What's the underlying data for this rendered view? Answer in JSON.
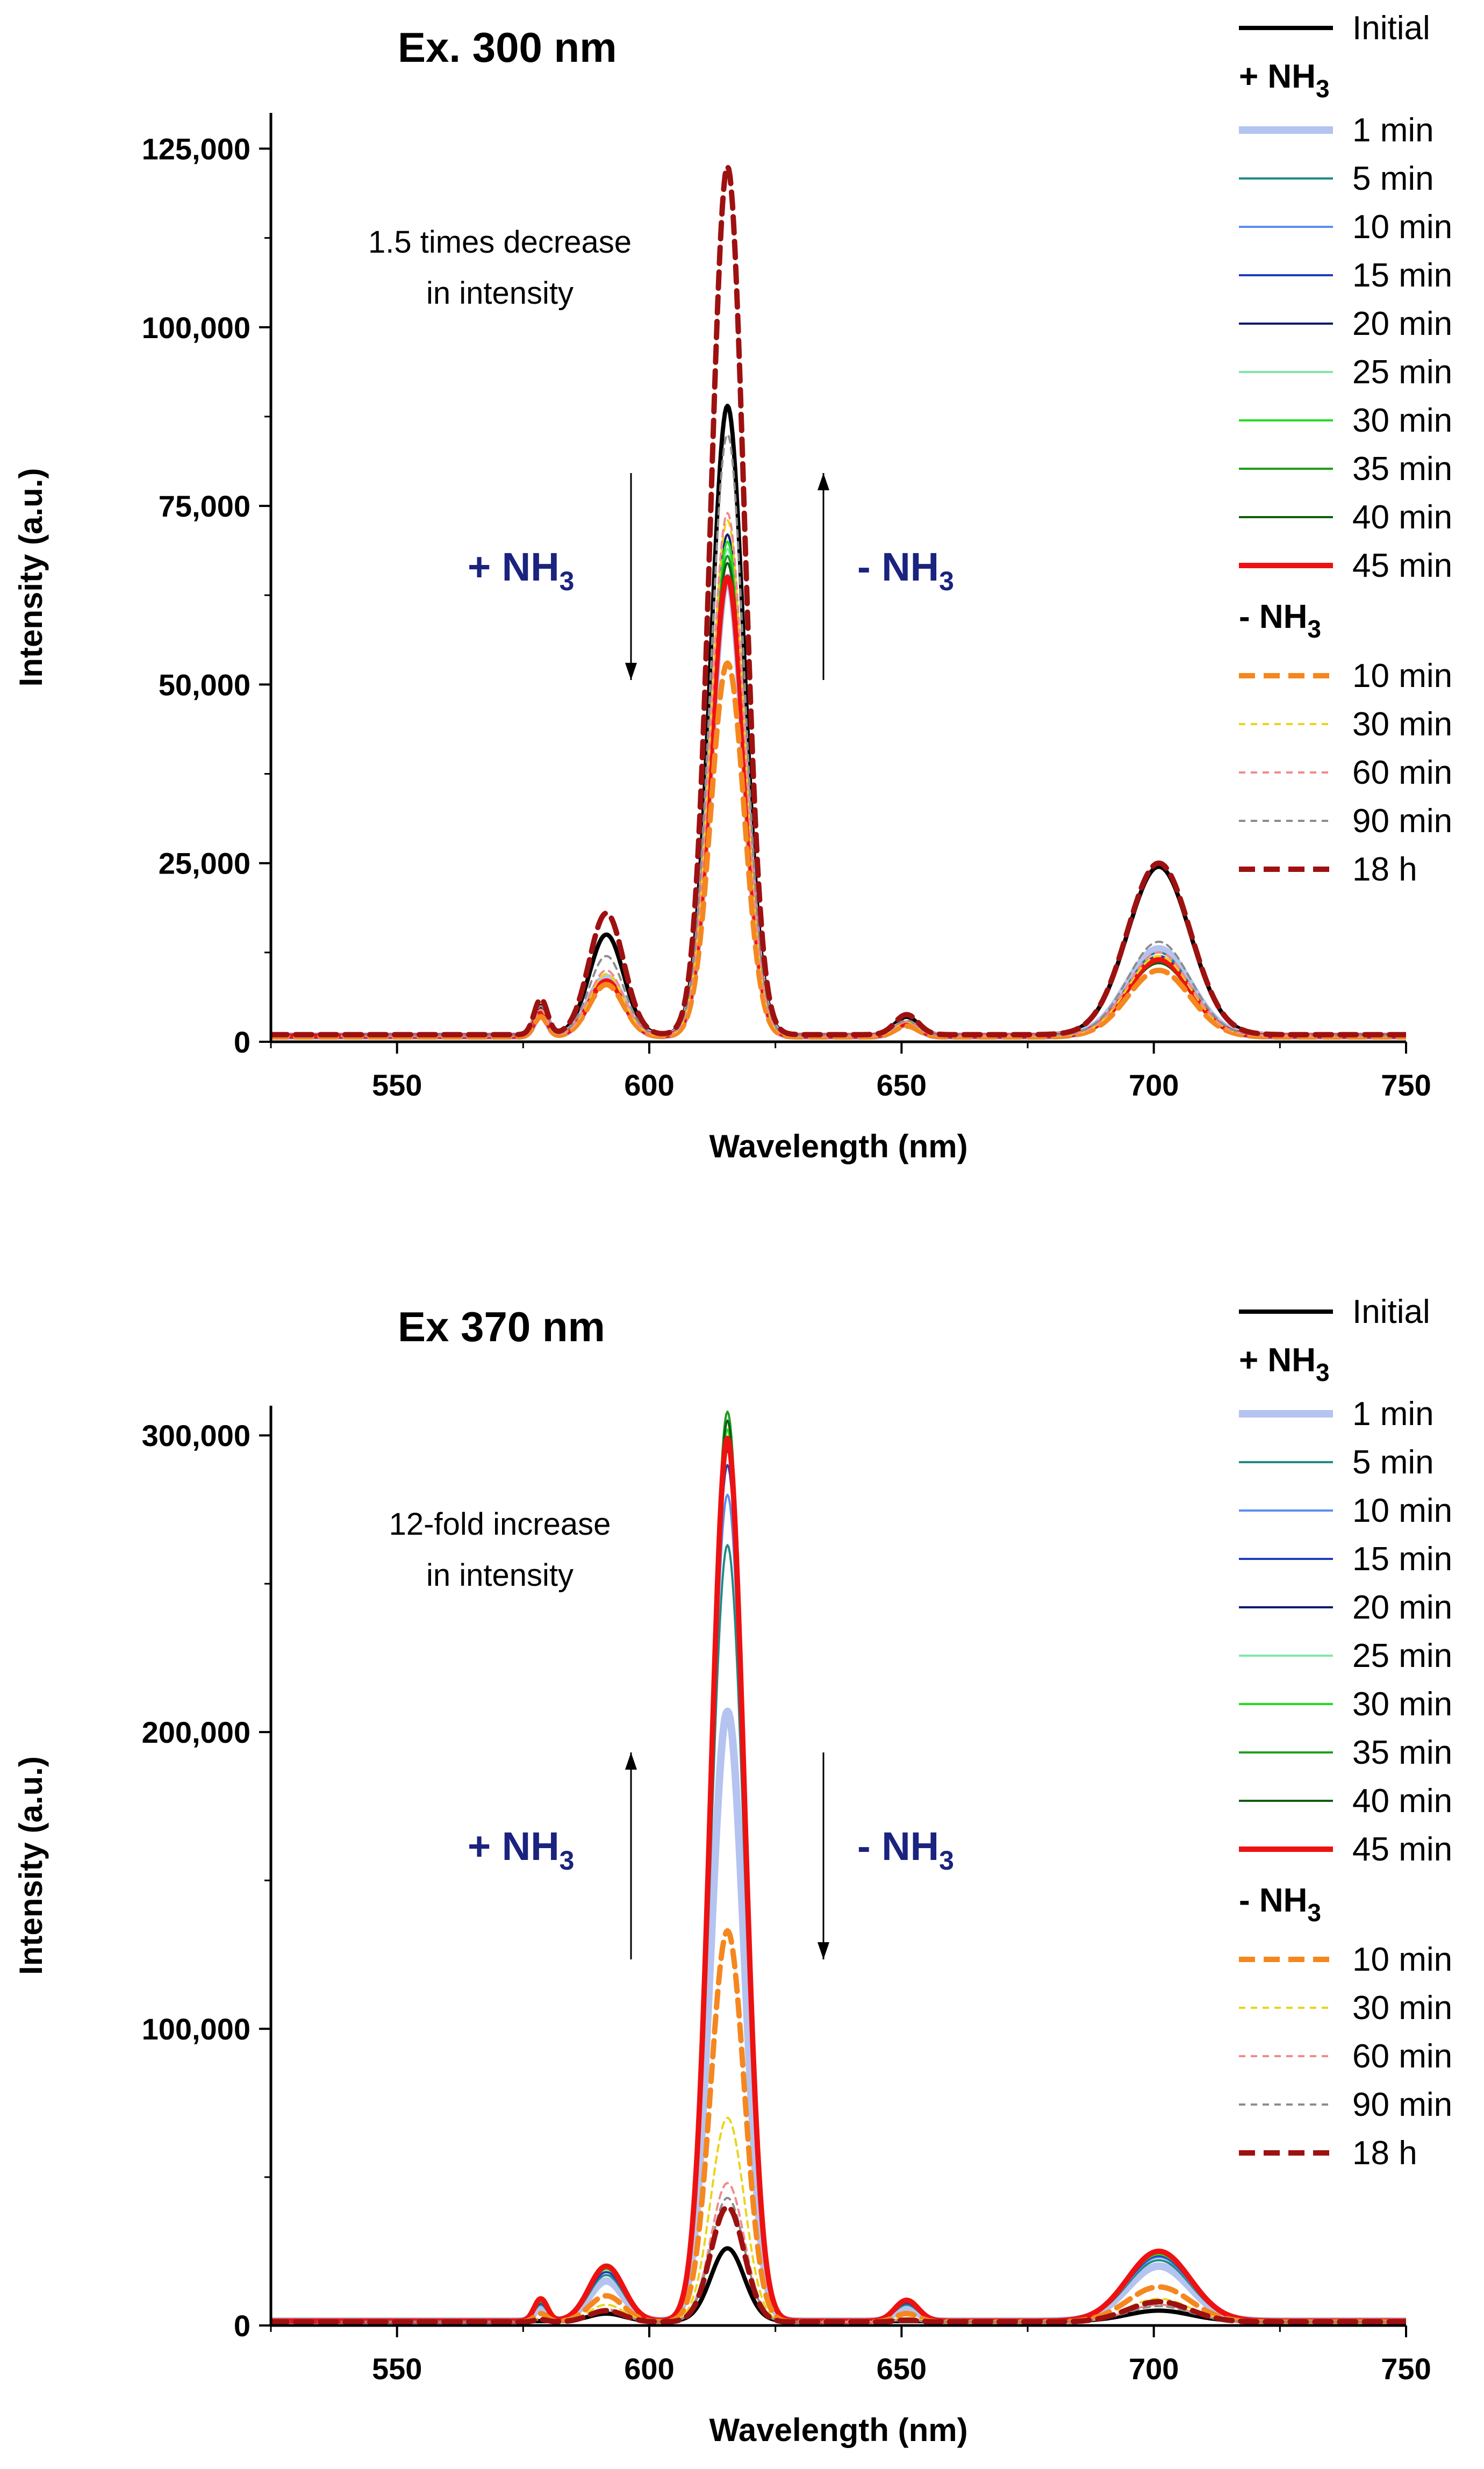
{
  "chart_data": [
    {
      "type": "line",
      "title": "Ex. 300 nm",
      "xlabel": "Wavelength (nm)",
      "ylabel": "Intensity (a.u.)",
      "xlim": [
        525,
        750
      ],
      "ylim": [
        0,
        130000
      ],
      "xticks": [
        550,
        600,
        650,
        700,
        750
      ],
      "xtick_labels": [
        "550",
        "600",
        "650",
        "700",
        "750"
      ],
      "yticks": [
        0,
        25000,
        50000,
        75000,
        100000,
        125000
      ],
      "ytick_labels": [
        "0",
        "25,000",
        "50,000",
        "75,000",
        "100,000",
        "125,000"
      ],
      "annotation": [
        "1.5 times decrease",
        "in intensity"
      ],
      "arrow_labels": {
        "plus": {
          "main": "+ NH",
          "sub": "3"
        },
        "minus": {
          "main": "- NH",
          "sub": "3"
        }
      },
      "arrow_directions": {
        "plus": "down",
        "minus": "up"
      },
      "legend": {
        "position": "right",
        "initial": "Initial",
        "plus_header": {
          "main": "+ NH",
          "sub": "3"
        },
        "plus_items": [
          "1 min",
          "5 min",
          "10 min",
          "15 min",
          "20 min",
          "25 min",
          "30 min",
          "35  min",
          "40 min",
          "45 min"
        ],
        "minus_header": {
          "main": "- NH",
          "sub": "3"
        },
        "minus_items": [
          "10 min",
          "30 min",
          "60 min",
          "90 min",
          "18 h"
        ]
      },
      "series": [
        {
          "name": "Initial",
          "group": "initial",
          "color": "#000000",
          "dash": "solid",
          "width": 8,
          "peaks": [
            1000,
            5000,
            15000,
            89000,
            3500,
            24500
          ]
        },
        {
          "name": "1 min",
          "group": "plus",
          "color": "#b4c3f0",
          "dash": "solid",
          "width": 14,
          "peaks": [
            800,
            4000,
            9000,
            65000,
            2500,
            13000
          ]
        },
        {
          "name": "5 min",
          "group": "plus",
          "color": "#1f8a85",
          "dash": "solid",
          "width": 4,
          "peaks": [
            800,
            4000,
            8500,
            67000,
            2500,
            12500
          ]
        },
        {
          "name": "10 min",
          "group": "plus",
          "color": "#5b8def",
          "dash": "solid",
          "width": 4,
          "peaks": [
            800,
            4000,
            8500,
            68000,
            2500,
            12000
          ]
        },
        {
          "name": "15 min",
          "group": "plus",
          "color": "#1f3fb5",
          "dash": "solid",
          "width": 4,
          "peaks": [
            800,
            4000,
            8500,
            70000,
            2500,
            12000
          ]
        },
        {
          "name": "20 min",
          "group": "plus",
          "color": "#0d1a6e",
          "dash": "solid",
          "width": 4,
          "peaks": [
            800,
            4000,
            8500,
            71000,
            2500,
            11500
          ]
        },
        {
          "name": "25 min",
          "group": "plus",
          "color": "#7fe8a8",
          "dash": "solid",
          "width": 4,
          "peaks": [
            800,
            4000,
            8500,
            69000,
            2500,
            11500
          ]
        },
        {
          "name": "30 min",
          "group": "plus",
          "color": "#22dd22",
          "dash": "solid",
          "width": 4,
          "peaks": [
            800,
            4000,
            8500,
            70000,
            2500,
            11500
          ]
        },
        {
          "name": "35  min",
          "group": "plus",
          "color": "#1e9e1e",
          "dash": "solid",
          "width": 4,
          "peaks": [
            800,
            4000,
            8500,
            68000,
            2500,
            11000
          ]
        },
        {
          "name": "40 min",
          "group": "plus",
          "color": "#0f5e0f",
          "dash": "solid",
          "width": 4,
          "peaks": [
            800,
            4000,
            8500,
            67000,
            2500,
            11000
          ]
        },
        {
          "name": "45 min",
          "group": "plus",
          "color": "#ee1111",
          "dash": "solid",
          "width": 10,
          "peaks": [
            800,
            4000,
            8500,
            65000,
            2500,
            11500
          ]
        },
        {
          "name": "10 min",
          "group": "minus",
          "color": "#f5871f",
          "dash": "dashed",
          "width": 10,
          "peaks": [
            700,
            3500,
            8000,
            53000,
            2200,
            10000
          ]
        },
        {
          "name": "30 min",
          "group": "minus",
          "color": "#e8d51a",
          "dash": "dotted",
          "width": 4,
          "peaks": [
            800,
            4500,
            9500,
            73000,
            2800,
            12000
          ]
        },
        {
          "name": "60 min",
          "group": "minus",
          "color": "#f28a8a",
          "dash": "dotted",
          "width": 4,
          "peaks": [
            800,
            4500,
            10000,
            74000,
            2800,
            12500
          ]
        },
        {
          "name": "90 min",
          "group": "minus",
          "color": "#8c8c8c",
          "dash": "dotted",
          "width": 4,
          "peaks": [
            900,
            5000,
            12000,
            85000,
            3000,
            14000
          ]
        },
        {
          "name": "18 h",
          "group": "minus",
          "color": "#9e1111",
          "dash": "dashed",
          "width": 10,
          "peaks": [
            1000,
            6000,
            18000,
            122500,
            3800,
            25000
          ]
        }
      ]
    },
    {
      "type": "line",
      "title": "Ex 370 nm",
      "xlabel": "Wavelength (nm)",
      "ylabel": "Intensity (a.u.)",
      "xlim": [
        525,
        750
      ],
      "ylim": [
        0,
        310000
      ],
      "xticks": [
        550,
        600,
        650,
        700,
        750
      ],
      "xtick_labels": [
        "550",
        "600",
        "650",
        "700",
        "750"
      ],
      "yticks": [
        0,
        100000,
        200000,
        300000
      ],
      "ytick_labels": [
        "0",
        "100,000",
        "200,000",
        "300,000"
      ],
      "annotation": [
        "12-fold increase",
        "in intensity"
      ],
      "arrow_labels": {
        "plus": {
          "main": "+ NH",
          "sub": "3"
        },
        "minus": {
          "main": "- NH",
          "sub": "3"
        }
      },
      "arrow_directions": {
        "plus": "up",
        "minus": "down"
      },
      "legend": {
        "position": "right",
        "initial": "Initial",
        "plus_header": {
          "main": "+ NH",
          "sub": "3"
        },
        "plus_items": [
          "1 min",
          "5 min",
          "10 min",
          "15 min",
          "20 min",
          "25 min",
          "30 min",
          "35 min",
          "40 min",
          "45 min"
        ],
        "minus_header": {
          "main": "- NH",
          "sub": "3"
        },
        "minus_items": [
          "10 min",
          "30 min",
          "60 min",
          "90 min",
          "18 h"
        ]
      },
      "series": [
        {
          "name": "Initial",
          "group": "initial",
          "color": "#000000",
          "dash": "solid",
          "width": 8,
          "peaks": [
            1500,
            1500,
            4000,
            26000,
            1000,
            5000
          ]
        },
        {
          "name": "1 min",
          "group": "plus",
          "color": "#b4c3f0",
          "dash": "solid",
          "width": 14,
          "peaks": [
            1500,
            6000,
            15000,
            207000,
            6000,
            20000
          ]
        },
        {
          "name": "5 min",
          "group": "plus",
          "color": "#1f8a85",
          "dash": "solid",
          "width": 4,
          "peaks": [
            1500,
            7000,
            17000,
            263000,
            7000,
            22000
          ]
        },
        {
          "name": "10 min",
          "group": "plus",
          "color": "#5b8def",
          "dash": "solid",
          "width": 4,
          "peaks": [
            1500,
            7500,
            18000,
            280000,
            7500,
            23000
          ]
        },
        {
          "name": "15 min",
          "group": "plus",
          "color": "#1f3fb5",
          "dash": "solid",
          "width": 4,
          "peaks": [
            1500,
            7500,
            18000,
            290000,
            7500,
            23500
          ]
        },
        {
          "name": "20 min",
          "group": "plus",
          "color": "#0d1a6e",
          "dash": "solid",
          "width": 4,
          "peaks": [
            1500,
            8000,
            19000,
            295000,
            8000,
            24000
          ]
        },
        {
          "name": "25 min",
          "group": "plus",
          "color": "#7fe8a8",
          "dash": "solid",
          "width": 4,
          "peaks": [
            1500,
            8000,
            19000,
            297000,
            8000,
            24000
          ]
        },
        {
          "name": "30 min",
          "group": "plus",
          "color": "#22dd22",
          "dash": "solid",
          "width": 4,
          "peaks": [
            1500,
            8000,
            19000,
            302000,
            8000,
            24000
          ]
        },
        {
          "name": "35 min",
          "group": "plus",
          "color": "#1e9e1e",
          "dash": "solid",
          "width": 4,
          "peaks": [
            1500,
            8500,
            19500,
            308000,
            8000,
            24500
          ]
        },
        {
          "name": "40 min",
          "group": "plus",
          "color": "#0f5e0f",
          "dash": "solid",
          "width": 4,
          "peaks": [
            1500,
            8500,
            19500,
            305000,
            8000,
            24500
          ]
        },
        {
          "name": "45 min",
          "group": "plus",
          "color": "#ee1111",
          "dash": "solid",
          "width": 10,
          "peaks": [
            1500,
            9000,
            20000,
            299000,
            8500,
            25000
          ]
        },
        {
          "name": "10 min",
          "group": "minus",
          "color": "#f5871f",
          "dash": "dashed",
          "width": 10,
          "peaks": [
            1200,
            4000,
            10000,
            133000,
            4000,
            13000
          ]
        },
        {
          "name": "30 min",
          "group": "minus",
          "color": "#e8d51a",
          "dash": "dotted",
          "width": 4,
          "peaks": [
            1200,
            2500,
            7000,
            70000,
            2500,
            9000
          ]
        },
        {
          "name": "60 min",
          "group": "minus",
          "color": "#f28a8a",
          "dash": "dotted",
          "width": 4,
          "peaks": [
            1200,
            2000,
            5500,
            48000,
            2000,
            7000
          ]
        },
        {
          "name": "90 min",
          "group": "minus",
          "color": "#8c8c8c",
          "dash": "dotted",
          "width": 4,
          "peaks": [
            1200,
            2000,
            5000,
            43000,
            1800,
            6500
          ]
        },
        {
          "name": "18 h",
          "group": "minus",
          "color": "#9e1111",
          "dash": "dashed",
          "width": 10,
          "peaks": [
            1200,
            2000,
            5000,
            40000,
            1800,
            8000
          ]
        }
      ]
    }
  ]
}
